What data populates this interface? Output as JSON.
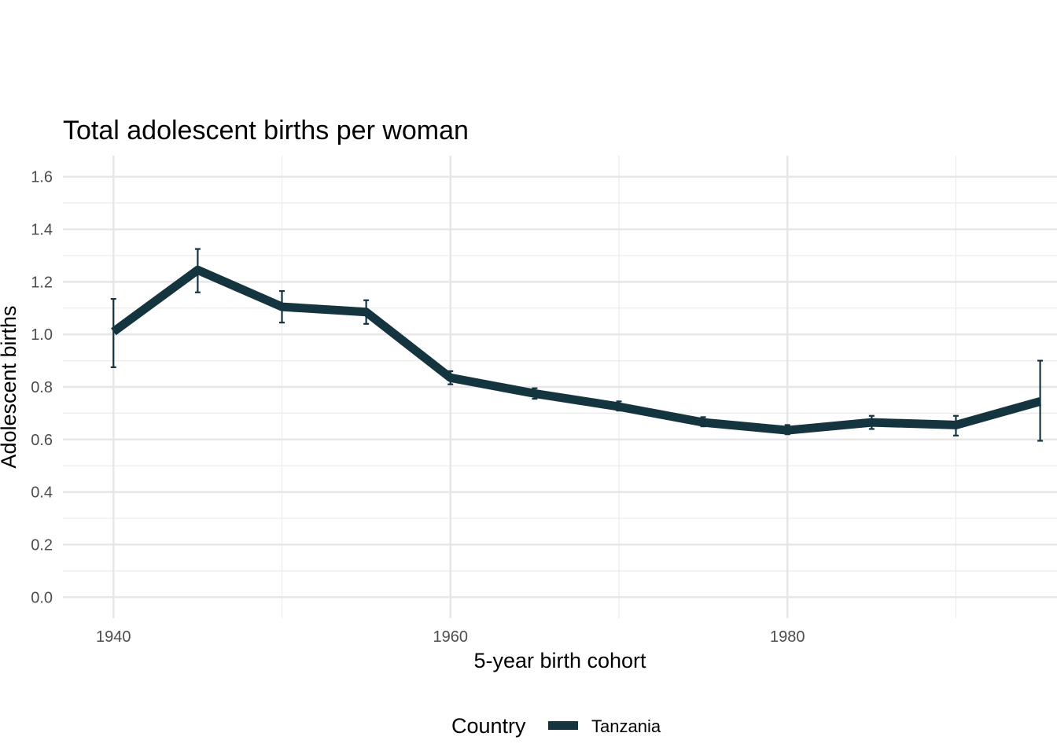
{
  "chart_data": {
    "type": "line",
    "title": "Total adolescent births per woman",
    "xlabel": "5-year birth cohort",
    "ylabel": "Adolescent births",
    "xlim": [
      1937,
      1996
    ],
    "ylim": [
      -0.08,
      1.68
    ],
    "x_ticks": [
      1940,
      1960,
      1980
    ],
    "x_tick_labels": [
      "1940",
      "1960",
      "1980"
    ],
    "x_minor_grid": [
      1950,
      1970,
      1990
    ],
    "y_ticks": [
      0.0,
      0.2,
      0.4,
      0.6,
      0.8,
      1.0,
      1.2,
      1.4,
      1.6
    ],
    "y_tick_labels": [
      "0.0",
      "0.2",
      "0.4",
      "0.6",
      "0.8",
      "1.0",
      "1.2",
      "1.4",
      "1.6"
    ],
    "y_minor_grid": [
      0.1,
      0.3,
      0.5,
      0.7,
      0.9,
      1.1,
      1.3,
      1.5
    ],
    "grid": true,
    "legend_title": "Country",
    "legend_position": "bottom",
    "series": [
      {
        "name": "Tanzania",
        "color": "#14343f",
        "x": [
          1940,
          1945,
          1950,
          1955,
          1960,
          1965,
          1970,
          1975,
          1980,
          1985,
          1990,
          1995
        ],
        "values": [
          1.01,
          1.245,
          1.105,
          1.085,
          0.835,
          0.775,
          0.725,
          0.665,
          0.635,
          0.665,
          0.655,
          0.745
        ],
        "lower": [
          0.875,
          1.16,
          1.045,
          1.04,
          0.81,
          0.755,
          0.71,
          0.65,
          0.62,
          0.64,
          0.615,
          0.595
        ],
        "upper": [
          1.135,
          1.325,
          1.165,
          1.13,
          0.86,
          0.795,
          0.745,
          0.685,
          0.655,
          0.69,
          0.69,
          0.9
        ]
      }
    ]
  }
}
